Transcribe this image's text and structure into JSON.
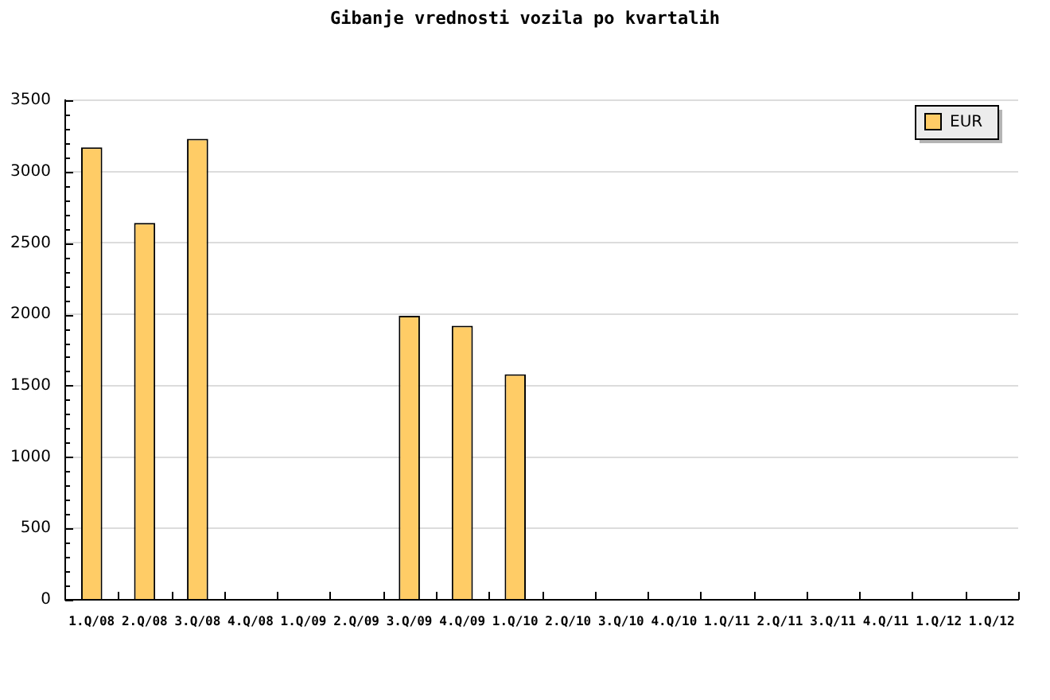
{
  "chart_data": {
    "type": "bar",
    "title": "Gibanje vrednosti vozila po kvartalih",
    "categories": [
      "1.Q/08",
      "2.Q/08",
      "3.Q/08",
      "4.Q/08",
      "1.Q/09",
      "2.Q/09",
      "3.Q/09",
      "4.Q/09",
      "1.Q/10",
      "2.Q/10",
      "3.Q/10",
      "4.Q/10",
      "1.Q/11",
      "2.Q/11",
      "3.Q/11",
      "4.Q/11",
      "1.Q/12",
      "1.Q/12"
    ],
    "series": [
      {
        "name": "EUR",
        "color": "#ffcc66",
        "values": [
          3170,
          2640,
          3230,
          null,
          null,
          null,
          1990,
          1920,
          1580,
          null,
          null,
          null,
          null,
          null,
          null,
          null,
          null,
          null
        ]
      }
    ],
    "ylim": [
      0,
      3500
    ],
    "yticks": [
      0,
      {
        "value": 100,
        "label": null
      },
      {
        "value": 200,
        "label": null
      },
      {
        "value": 300,
        "label": null
      },
      {
        "value": 400,
        "label": null
      },
      500,
      {
        "value": 600,
        "label": null
      },
      {
        "value": 700,
        "label": null
      },
      {
        "value": 800,
        "label": null
      },
      {
        "value": 900,
        "label": null
      },
      1000,
      {
        "value": 1100,
        "label": null
      },
      {
        "value": 1200,
        "label": null
      },
      {
        "value": 1300,
        "label": null
      },
      {
        "value": 1400,
        "label": null
      },
      1500,
      {
        "value": 1600,
        "label": null
      },
      {
        "value": 1700,
        "label": null
      },
      {
        "value": 1800,
        "label": null
      },
      {
        "value": 1900,
        "label": null
      },
      2000,
      {
        "value": 2100,
        "label": null
      },
      {
        "value": 2200,
        "label": null
      },
      {
        "value": 2300,
        "label": null
      },
      {
        "value": 2400,
        "label": null
      },
      2500,
      {
        "value": 2600,
        "label": null
      },
      {
        "value": 2700,
        "label": null
      },
      {
        "value": 2800,
        "label": null
      },
      {
        "value": 2900,
        "label": null
      },
      3000,
      {
        "value": 3100,
        "label": null
      },
      {
        "value": 3200,
        "label": null
      },
      {
        "value": 3300,
        "label": null
      },
      {
        "value": 3400,
        "label": null
      },
      3500
    ],
    "grid": "y",
    "legend": "top right"
  }
}
